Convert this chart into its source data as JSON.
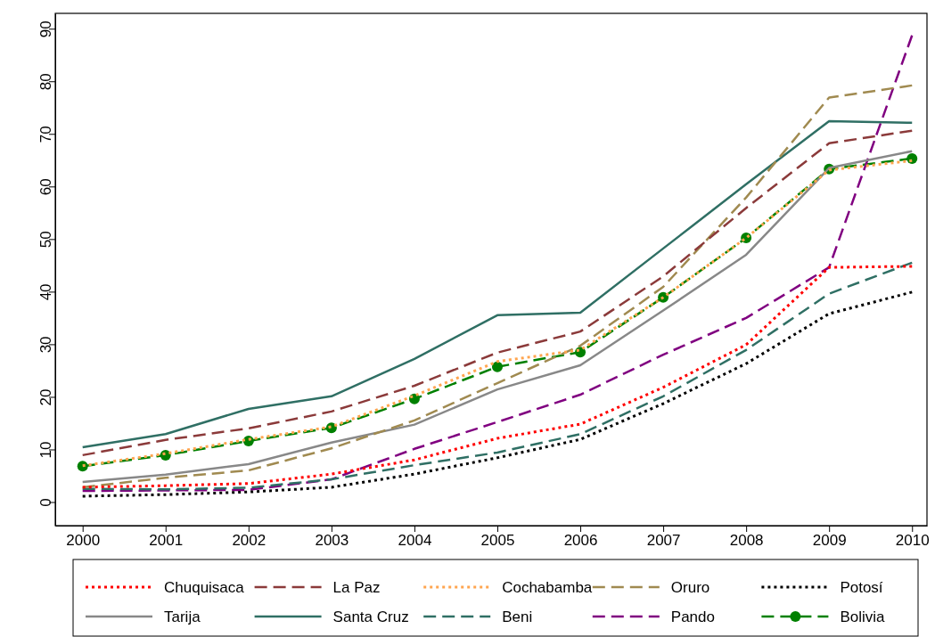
{
  "chart_data": {
    "type": "line",
    "x": [
      2000,
      2001,
      2002,
      2003,
      2004,
      2005,
      2006,
      2007,
      2008,
      2009,
      2010
    ],
    "xlim": [
      1999.67,
      2010.18
    ],
    "xticks": [
      2000,
      2001,
      2002,
      2003,
      2004,
      2005,
      2006,
      2007,
      2008,
      2009,
      2010
    ],
    "ylim": [
      -4.4,
      93
    ],
    "yticks": [
      0,
      10,
      20,
      30,
      40,
      50,
      60,
      70,
      80,
      90
    ],
    "grid": false,
    "legend": "bottom",
    "series": [
      {
        "name": "Chuquisaca",
        "color": "#ff0000",
        "line_style": "dotted",
        "values": [
          2.9,
          3.2,
          3.6,
          5.4,
          8.1,
          12.2,
          14.9,
          21.9,
          30,
          44.7,
          44.9
        ]
      },
      {
        "name": "La Paz",
        "color": "#8b3a3a",
        "line_style": "dashed",
        "values": [
          9.0,
          11.9,
          14.1,
          17.3,
          22.2,
          28.5,
          32.5,
          43,
          56,
          68.3,
          70.7
        ]
      },
      {
        "name": "Cochabamba",
        "color": "#ffa54f",
        "line_style": "dotted",
        "values": [
          7.0,
          9.3,
          12.0,
          14.4,
          20.3,
          26.8,
          29.0,
          39,
          50.3,
          63.2,
          65.0
        ]
      },
      {
        "name": "Oruro",
        "color": "#a08a50",
        "line_style": "dashed",
        "values": [
          2.9,
          4.7,
          6.1,
          10.3,
          15.6,
          22.7,
          29.8,
          41,
          58,
          77,
          79.3
        ]
      },
      {
        "name": "Potosí",
        "color": "#000000",
        "line_style": "dotted",
        "values": [
          1.2,
          1.5,
          2.0,
          2.9,
          5.4,
          8.5,
          12.0,
          18.8,
          26.4,
          35.9,
          40
        ]
      },
      {
        "name": "Tarija",
        "color": "#888888",
        "line_style": "solid",
        "values": [
          3.9,
          5.3,
          7.3,
          11.4,
          14.8,
          21.5,
          26.1,
          36.5,
          47.1,
          63.6,
          66.8
        ]
      },
      {
        "name": "Santa Cruz",
        "color": "#2f6f64",
        "line_style": "solid",
        "values": [
          10.5,
          13,
          17.8,
          20.2,
          27.3,
          35.6,
          36.1,
          48.3,
          60.5,
          72.5,
          72.2
        ]
      },
      {
        "name": "Beni",
        "color": "#2f6f64",
        "line_style": "dashed",
        "values": [
          2.6,
          2.5,
          2.8,
          4.4,
          7.1,
          9.5,
          13,
          20.2,
          29,
          39.7,
          45.6
        ]
      },
      {
        "name": "Pando",
        "color": "#800080",
        "line_style": "dashed",
        "values": [
          2.2,
          2.3,
          2.4,
          4.4,
          10.2,
          15.3,
          20.5,
          28.1,
          35.1,
          44.7,
          88.8
        ]
      },
      {
        "name": "Bolivia",
        "color": "#008000",
        "line_style": "dashed",
        "marker": "circle",
        "values": [
          6.9,
          9.0,
          11.7,
          14.2,
          19.7,
          25.8,
          28.6,
          39,
          50.3,
          63.4,
          65.4
        ]
      }
    ]
  }
}
